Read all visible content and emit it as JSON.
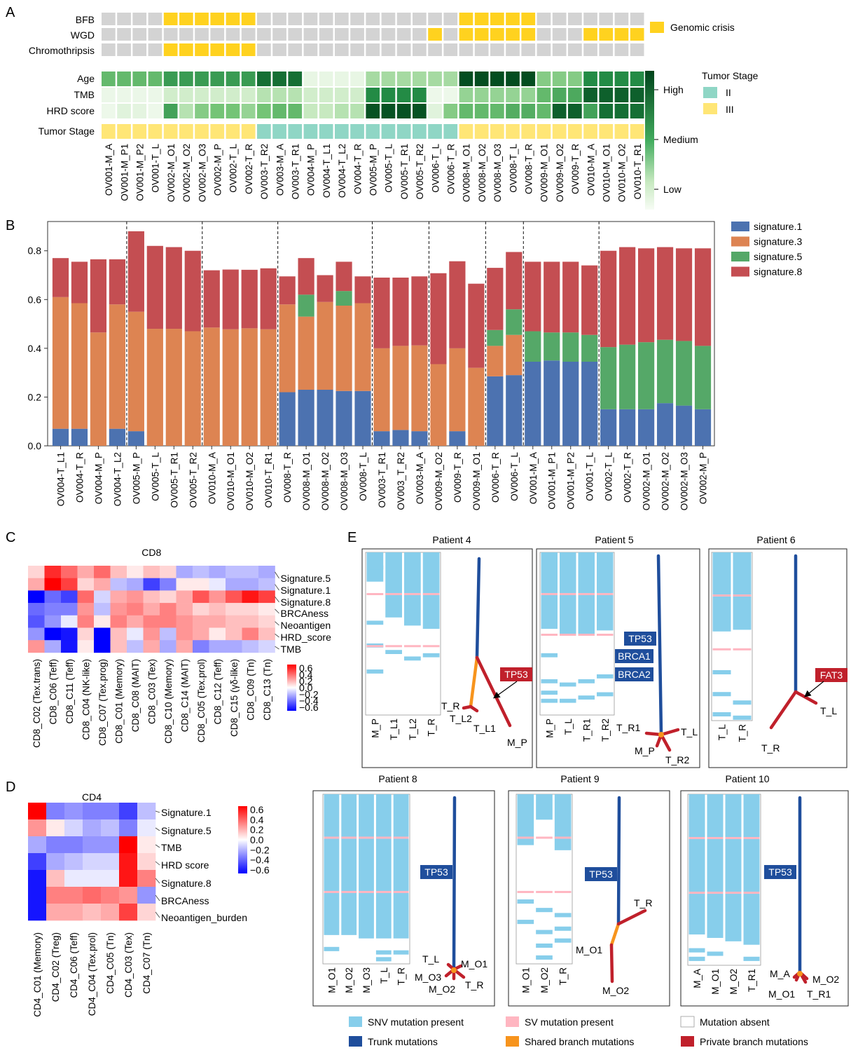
{
  "panel_labels": [
    "A",
    "B",
    "C",
    "D",
    "E"
  ],
  "chart_data": [
    {
      "type": "heatmap",
      "panel": "A",
      "samples": [
        "OV001-M_A",
        "OV001-M_P1",
        "OV001-M_P2",
        "OV001-T_L",
        "OV002-M_O1",
        "OV002-M_O2",
        "OV002-M_O3",
        "OV002-M_P",
        "OV002-T_L",
        "OV002-T_R",
        "OV003-T_R2",
        "OV003-M_A",
        "OV003-T_R1",
        "OV004-M_P",
        "OV004-T_L1",
        "OV004-T_L2",
        "OV004-T_R",
        "OV005-M_P",
        "OV005-T_L",
        "OV005-T_R1",
        "OV005-T_R2",
        "OV006-T_L",
        "OV006-T_R",
        "OV008-M_O1",
        "OV008-M_O2",
        "OV008-M_O3",
        "OV008-T_L",
        "OV008-T_R",
        "OV009-M_O1",
        "OV009-M_O2",
        "OV009-T_R",
        "OV010-M_A",
        "OV010-M_O1",
        "OV010-M_O2",
        "OV010-T_R1"
      ],
      "crisis_rows": [
        {
          "name": "BFB",
          "values": [
            0,
            0,
            0,
            0,
            1,
            1,
            1,
            1,
            1,
            1,
            0,
            0,
            0,
            0,
            0,
            0,
            0,
            0,
            0,
            0,
            0,
            0,
            0,
            1,
            1,
            1,
            1,
            1,
            0,
            0,
            0,
            0,
            0,
            0,
            0
          ]
        },
        {
          "name": "WGD",
          "values": [
            0,
            0,
            0,
            0,
            0,
            0,
            0,
            0,
            0,
            0,
            0,
            0,
            0,
            0,
            0,
            0,
            0,
            0,
            0,
            0,
            0,
            1,
            0,
            1,
            1,
            1,
            1,
            1,
            0,
            0,
            0,
            1,
            1,
            1,
            1
          ]
        },
        {
          "name": "Chromothripsis",
          "values": [
            0,
            0,
            0,
            0,
            1,
            1,
            1,
            1,
            1,
            1,
            0,
            0,
            0,
            0,
            0,
            0,
            0,
            0,
            0,
            0,
            0,
            0,
            0,
            0,
            0,
            0,
            0,
            0,
            0,
            0,
            0,
            0,
            0,
            0,
            0
          ]
        }
      ],
      "crisis_legend": "Genomic crisis",
      "level_rows": [
        {
          "name": "Age",
          "values": [
            0.55,
            0.55,
            0.55,
            0.55,
            0.68,
            0.68,
            0.68,
            0.68,
            0.68,
            0.68,
            0.85,
            0.85,
            0.85,
            0.08,
            0.08,
            0.08,
            0.08,
            0.35,
            0.35,
            0.35,
            0.35,
            0.35,
            0.35,
            0.97,
            0.97,
            0.97,
            0.97,
            0.97,
            0.45,
            0.45,
            0.45,
            0.75,
            0.75,
            0.75,
            0.75
          ]
        },
        {
          "name": "TMB",
          "values": [
            0.06,
            0.06,
            0.06,
            0.06,
            0.2,
            0.2,
            0.2,
            0.2,
            0.2,
            0.2,
            0.3,
            0.3,
            0.3,
            0.2,
            0.2,
            0.2,
            0.2,
            0.75,
            0.75,
            0.75,
            0.75,
            0.05,
            0.05,
            0.4,
            0.4,
            0.4,
            0.4,
            0.4,
            0.55,
            0.62,
            0.62,
            0.9,
            0.9,
            0.9,
            0.9
          ]
        },
        {
          "name": "HRD score",
          "values": [
            0.05,
            0.12,
            0.1,
            0.05,
            0.65,
            0.3,
            0.45,
            0.5,
            0.5,
            0.4,
            0.5,
            0.55,
            0.55,
            0.25,
            0.25,
            0.3,
            0.3,
            0.95,
            0.95,
            0.95,
            0.95,
            0.12,
            0.45,
            0.55,
            0.55,
            0.55,
            0.6,
            0.6,
            0.55,
            0.9,
            0.9,
            0.65,
            0.85,
            0.85,
            0.85
          ]
        }
      ],
      "stage_row": {
        "name": "Tumor Stage",
        "values": [
          "III",
          "III",
          "III",
          "III",
          "III",
          "III",
          "III",
          "III",
          "III",
          "III",
          "II",
          "II",
          "II",
          "II",
          "II",
          "II",
          "II",
          "II",
          "II",
          "II",
          "II",
          "II",
          "II",
          "III",
          "III",
          "III",
          "III",
          "III",
          "III",
          "III",
          "III",
          "III",
          "III",
          "III",
          "III"
        ]
      },
      "colorbar_labels": [
        "High",
        "Medium",
        "Low"
      ],
      "stage_legend": {
        "title": "Tumor Stage",
        "items": [
          "II",
          "III"
        ]
      },
      "colors": {
        "crisis": "#FFD21F",
        "gray": "#D3D3D3",
        "stage_II": "#8FD6C5",
        "stage_III": "#FFE676",
        "green_dark": "#00441B",
        "green_light": "#F7FCF5"
      }
    },
    {
      "type": "bar",
      "panel": "B",
      "stacked": true,
      "categories": [
        "OV004-T_L1",
        "OV004-T_R",
        "OV004-M_P",
        "OV004-T_L2",
        "OV005-M_P",
        "OV005-T_L",
        "OV005-T_R1",
        "OV005-T_R2",
        "OV010-M_A",
        "OV010-M_O1",
        "OV010-M_O2",
        "OV010-T_R1",
        "OV008-T_R",
        "OV008-M_O1",
        "OV008-M_O2",
        "OV008-M_O3",
        "OV008-T_L",
        "OV003-T_R1",
        "OV003_T_R2",
        "OV003-M_A",
        "OV009-M_O2",
        "OV009-T_R",
        "OV009-M_O1",
        "OV006-T_R",
        "OV006-T_L",
        "OV001-M_A",
        "OV001-M_P1",
        "OV001-M_P2",
        "OV001-T_L",
        "OV002-T_L",
        "OV002-T_R",
        "OV002-M_O1",
        "OV002-M_O2",
        "OV002-M_O3",
        "OV002-M_P"
      ],
      "series": [
        {
          "name": "signature.1",
          "color": "#4C72B0",
          "values": [
            0.07,
            0.07,
            0,
            0.07,
            0.06,
            0,
            0,
            0,
            0,
            0,
            0,
            0,
            0.22,
            0.23,
            0.23,
            0.225,
            0.225,
            0.06,
            0.065,
            0.06,
            0,
            0.06,
            0,
            0.285,
            0.29,
            0.345,
            0.35,
            0.345,
            0.345,
            0.15,
            0.15,
            0.15,
            0.175,
            0.165,
            0.15
          ]
        },
        {
          "name": "signature.3",
          "color": "#DD8452",
          "values": [
            0.54,
            0.515,
            0.465,
            0.51,
            0.49,
            0.48,
            0.48,
            0.47,
            0.485,
            0.478,
            0.482,
            0.478,
            0.36,
            0.3,
            0.36,
            0.35,
            0.36,
            0.34,
            0.345,
            0.352,
            0.335,
            0.34,
            0.32,
            0.125,
            0.165,
            0,
            0,
            0,
            0,
            0,
            0,
            0,
            0,
            0,
            0
          ]
        },
        {
          "name": "signature.5",
          "color": "#55A868",
          "values": [
            0,
            0,
            0,
            0,
            0,
            0,
            0,
            0,
            0,
            0,
            0,
            0,
            0,
            0.09,
            0,
            0.06,
            0,
            0,
            0,
            0,
            0,
            0,
            0,
            0.065,
            0.105,
            0.125,
            0.115,
            0.12,
            0.11,
            0.255,
            0.265,
            0.275,
            0.26,
            0.265,
            0.26
          ]
        },
        {
          "name": "signature.8",
          "color": "#C44E52",
          "values": [
            0.16,
            0.17,
            0.3,
            0.185,
            0.33,
            0.34,
            0.335,
            0.33,
            0.235,
            0.245,
            0.24,
            0.25,
            0.115,
            0.15,
            0.11,
            0.12,
            0.11,
            0.29,
            0.28,
            0.283,
            0.373,
            0.357,
            0.345,
            0.255,
            0.235,
            0.285,
            0.29,
            0.29,
            0.285,
            0.395,
            0.4,
            0.385,
            0.38,
            0.38,
            0.4
          ]
        }
      ],
      "groups": [
        4,
        4,
        4,
        5,
        3,
        3,
        2,
        4,
        6
      ],
      "yticks": [
        0.0,
        0.2,
        0.4,
        0.6,
        0.8
      ],
      "ylim": [
        0,
        0.92
      ]
    },
    {
      "type": "heatmap",
      "panel": "C",
      "title": "CD8",
      "columns": [
        "CD8_C02 (Tex.trans)",
        "CD8_C06 (Teff)",
        "CD8_C11 (Teff)",
        "CD8_C04 (NK-like)",
        "CD8_C07 (Tex.prog)",
        "CD8_C01 (Memory)",
        "CD8_C08 (MAIT)",
        "CD8_C03 (Tex)",
        "CD8_C10 (Memory)",
        "CD8_C14 (MAIT)",
        "CD8_C05 (Tex.prol)",
        "CD8_C12 (Teff)",
        "CD8_C15 (γδ-like)",
        "CD8_C09 (Tn)",
        "CD8_C13 (Tn)"
      ],
      "rows": [
        "Signature.5",
        "Signature.1",
        "Signature.8",
        "BRCAness",
        "Neoantigen",
        "HRD_score",
        "TMB"
      ],
      "values": [
        [
          0.1,
          0.5,
          0.35,
          0.2,
          0.35,
          0.15,
          0.05,
          0.15,
          0.1,
          -0.2,
          -0.15,
          -0.2,
          -0.15,
          -0.15,
          -0.2
        ],
        [
          0.2,
          0.6,
          0.45,
          0.1,
          0.2,
          -0.15,
          -0.2,
          -0.45,
          -0.3,
          0.05,
          0.05,
          -0.05,
          -0.2,
          -0.2,
          -0.15
        ],
        [
          -0.6,
          -0.35,
          -0.45,
          0.35,
          -0.1,
          0.2,
          0.25,
          0.15,
          0.1,
          0.2,
          0.4,
          0.25,
          0.4,
          0.55,
          0.45
        ],
        [
          -0.35,
          -0.3,
          -0.3,
          0.25,
          -0.15,
          0.25,
          0.3,
          0.2,
          0.3,
          0.2,
          0.1,
          0.15,
          0.1,
          0.1,
          0.05
        ],
        [
          -0.4,
          -0.25,
          -0.05,
          0.3,
          0.05,
          0.3,
          0.2,
          0.3,
          0.3,
          0.25,
          0.2,
          0.2,
          0.15,
          0.15,
          0.1
        ],
        [
          -0.25,
          -0.6,
          -0.55,
          0.1,
          -0.65,
          0.15,
          -0.05,
          0.25,
          -0.15,
          0.25,
          0.2,
          0.05,
          0.15,
          0.3,
          0.15
        ],
        [
          0.25,
          -0.2,
          -0.55,
          0.05,
          -0.65,
          0.15,
          -0.15,
          0.2,
          -0.2,
          0.2,
          -0.3,
          -0.2,
          -0.2,
          -0.15,
          -0.1
        ]
      ],
      "colorbar": [
        "0.6",
        "0.4",
        "0.2",
        "0.0",
        "−0.2",
        "−0.4",
        "−0.6"
      ]
    },
    {
      "type": "heatmap",
      "panel": "D",
      "title": "CD4",
      "columns": [
        "CD4_C01 (Memory)",
        "CD4_C02 (Treg)",
        "CD4_C06 (Teff)",
        "CD4_C04 (Tex.prol)",
        "CD4_C05 (Tn)",
        "CD4_C03 (Tex)",
        "CD4_C07 (Tn)"
      ],
      "rows": [
        "Signature.1",
        "Signature.5",
        "TMB",
        "HRD score",
        "Signature.8",
        "BRCAness",
        "Neoantigen_burden"
      ],
      "values": [
        [
          0.6,
          -0.3,
          -0.25,
          -0.3,
          -0.3,
          -0.45,
          -0.15
        ],
        [
          0.25,
          0.05,
          -0.1,
          -0.2,
          -0.15,
          -0.3,
          -0.05
        ],
        [
          -0.2,
          -0.3,
          -0.3,
          -0.25,
          -0.25,
          0.65,
          0.05
        ],
        [
          -0.45,
          -0.2,
          -0.15,
          -0.1,
          -0.1,
          0.55,
          0.1
        ],
        [
          -0.55,
          0.15,
          -0.05,
          -0.05,
          -0.05,
          0.55,
          0.3
        ],
        [
          -0.55,
          0.3,
          0.3,
          0.35,
          0.3,
          0.25,
          -0.25
        ],
        [
          -0.55,
          0.2,
          0.2,
          0.15,
          0.2,
          0.45,
          0.1
        ]
      ],
      "colorbar": [
        "0.6",
        "0.4",
        "0.2",
        "0.0",
        "−0.2",
        "−0.4",
        "−0.6"
      ]
    },
    {
      "type": "diagram",
      "panel": "E",
      "patients": [
        {
          "title": "Patient 4",
          "columns": [
            "M_P",
            "T_L1",
            "T_L2",
            "T_R"
          ],
          "gene_labels": [
            {
              "text": "TP53",
              "kind": "private"
            }
          ],
          "tree_labels": [
            "T_R",
            "T_L2",
            "T_L1",
            "M_P"
          ]
        },
        {
          "title": "Patient 5",
          "columns": [
            "M_P",
            "T_L",
            "T_R1",
            "T_R2"
          ],
          "gene_labels": [
            {
              "text": "TP53",
              "kind": "trunk"
            },
            {
              "text": "BRCA1",
              "kind": "trunk"
            },
            {
              "text": "BRCA2",
              "kind": "trunk"
            }
          ],
          "tree_labels": [
            "T_R1",
            "T_L",
            "M_P",
            "T_R2"
          ]
        },
        {
          "title": "Patient 6",
          "columns": [
            "T_L",
            "T_R"
          ],
          "gene_labels": [
            {
              "text": "FAT3",
              "kind": "private"
            }
          ],
          "tree_labels": [
            "T_L",
            "T_R"
          ]
        },
        {
          "title": "Patient 8",
          "columns": [
            "M_O1",
            "M_O2",
            "M_O3",
            "T_L",
            "T_R"
          ],
          "gene_labels": [
            {
              "text": "TP53",
              "kind": "trunk"
            }
          ],
          "tree_labels": [
            "T_L",
            "M_O1",
            "M_O3",
            "T_R",
            "M_O2"
          ]
        },
        {
          "title": "Patient 9",
          "columns": [
            "M_O1",
            "M_O2",
            "T_R"
          ],
          "gene_labels": [
            {
              "text": "TP53",
              "kind": "trunk"
            }
          ],
          "tree_labels": [
            "T_R",
            "M_O1",
            "M_O2"
          ]
        },
        {
          "title": "Patient 10",
          "columns": [
            "M_A",
            "M_O1",
            "M_O2",
            "T_R1"
          ],
          "gene_labels": [
            {
              "text": "TP53",
              "kind": "trunk"
            }
          ],
          "tree_labels": [
            "M_A",
            "M_O2",
            "M_O1",
            "T_R1"
          ]
        }
      ],
      "legend": [
        {
          "label": "SNV mutation present",
          "color": "#87CEEB"
        },
        {
          "label": "SV mutation present",
          "color": "#FFB6C1"
        },
        {
          "label": "Mutation absent",
          "color": "#FFFFFF"
        },
        {
          "label": "Trunk mutations",
          "color": "#1F4E9C"
        },
        {
          "label": "Shared branch mutations",
          "color": "#F7941D"
        },
        {
          "label": "Private branch mutations",
          "color": "#C0202B"
        }
      ]
    }
  ]
}
